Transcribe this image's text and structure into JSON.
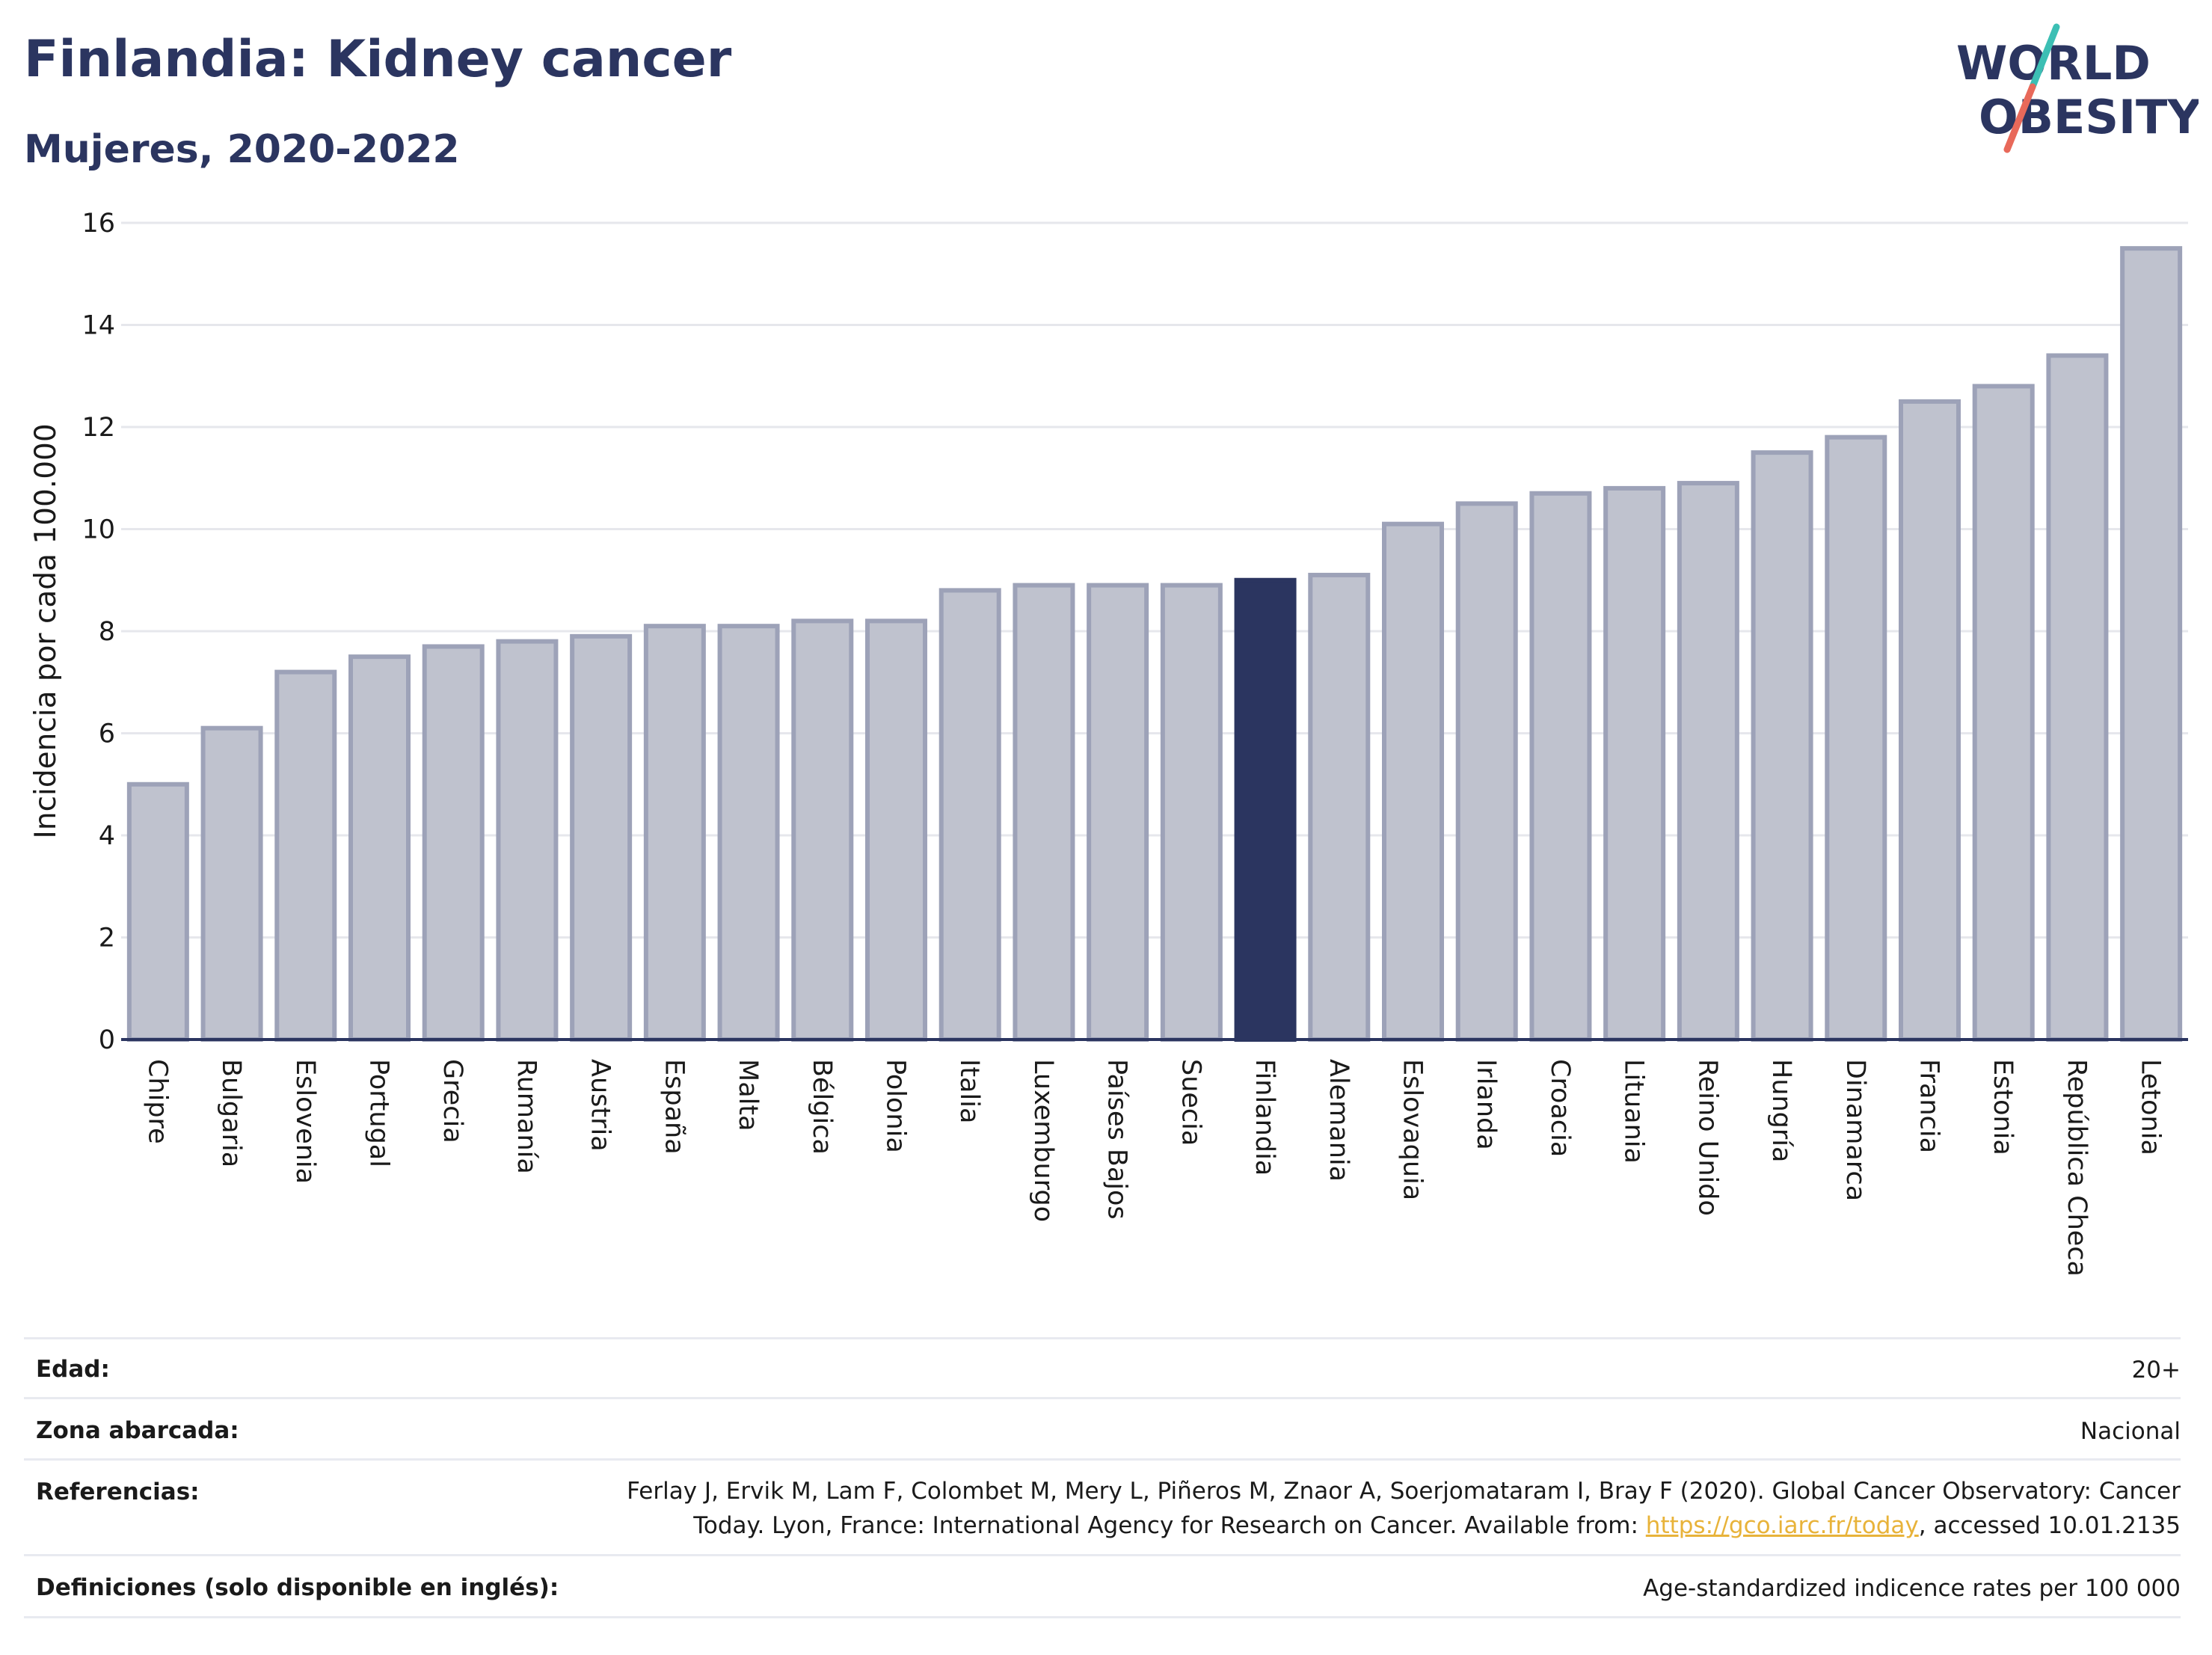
{
  "header": {
    "title": "Finlandia: Kidney cancer",
    "subtitle": "Mujeres, 2020-2022"
  },
  "logo": {
    "line1": "WORLD",
    "line2": "OBESITY",
    "colors": {
      "text": "#2b3560",
      "slash_top": "#3cbfb4",
      "slash_bottom": "#e8695a"
    }
  },
  "chart_data": {
    "type": "bar",
    "title": "",
    "xlabel": "",
    "ylabel": "Incidencia por cada 100.000",
    "ylim": [
      0,
      16
    ],
    "yticks": [
      0,
      2,
      4,
      6,
      8,
      10,
      12,
      14,
      16
    ],
    "grid": true,
    "categories": [
      "Chipre",
      "Bulgaria",
      "Eslovenia",
      "Portugal",
      "Grecia",
      "Rumanía",
      "Austria",
      "España",
      "Malta",
      "Bélgica",
      "Polonia",
      "Italia",
      "Luxemburgo",
      "Países Bajos",
      "Suecia",
      "Finlandia",
      "Alemania",
      "Eslovaquia",
      "Irlanda",
      "Croacia",
      "Lituania",
      "Reino Unido",
      "Hungría",
      "Dinamarca",
      "Francia",
      "Estonia",
      "República Checa",
      "Letonia"
    ],
    "values": [
      5.0,
      6.1,
      7.2,
      7.5,
      7.7,
      7.8,
      7.9,
      8.1,
      8.1,
      8.2,
      8.2,
      8.8,
      8.9,
      8.9,
      8.9,
      9.0,
      9.1,
      10.1,
      10.5,
      10.7,
      10.8,
      10.9,
      11.5,
      11.8,
      12.5,
      12.8,
      13.4,
      15.5
    ],
    "highlight": "Finlandia",
    "colors": {
      "bar": "#bfc2ce",
      "bar_border": "#9da2b8",
      "highlight": "#2b3560",
      "grid": "#e6e7ec",
      "axis": "#2b3560"
    }
  },
  "meta": {
    "age_label": "Edad:",
    "age_value": "20+",
    "area_label": "Zona abarcada:",
    "area_value": "Nacional",
    "refs_label": "Referencias:",
    "refs_line1": "Ferlay J, Ervik M, Lam F, Colombet M, Mery L, Piñeros M, Znaor A, Soerjomataram I, Bray F (2020). Global Cancer Observatory: Cancer",
    "refs_line2_pre": "Today. Lyon, France: International Agency for Research on Cancer. Available from: ",
    "refs_link": "https://gco.iarc.fr/today",
    "refs_line2_post": ", accessed 10.01.2135",
    "defs_label": "Definiciones (solo disponible en inglés):",
    "defs_value": "Age-standardized indicence rates per 100 000"
  }
}
